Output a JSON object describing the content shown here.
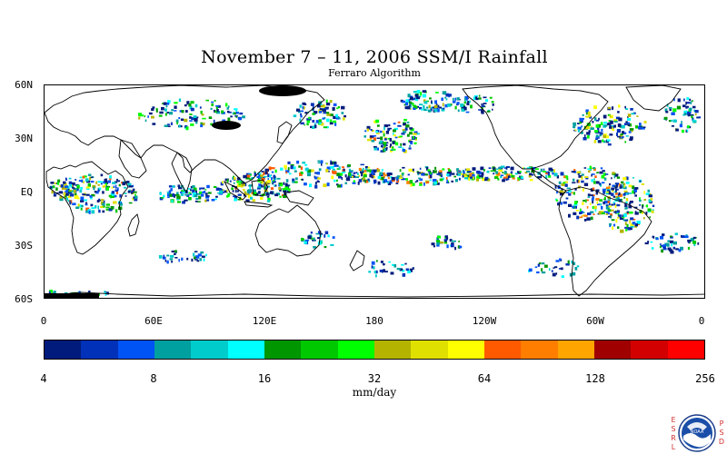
{
  "title": "November 7 – 11, 2006 SSM/I Rainfall",
  "subtitle": "Ferraro Algorithm",
  "map": {
    "lat_labels": [
      "60N",
      "30N",
      "EQ",
      "30S",
      "60S"
    ],
    "lon_labels": [
      "0",
      "60E",
      "120E",
      "180",
      "120W",
      "60W",
      "0"
    ]
  },
  "colorbar": {
    "colors": [
      "#001b7c",
      "#0031b8",
      "#0053f5",
      "#00a0a0",
      "#00cccc",
      "#00ffff",
      "#009600",
      "#00c800",
      "#00ff00",
      "#b4b400",
      "#e0e000",
      "#ffff00",
      "#ff5a00",
      "#ff7e00",
      "#ffa500",
      "#a00000",
      "#d20000",
      "#ff0000"
    ],
    "labels": [
      "4",
      "8",
      "16",
      "32",
      "64",
      "128",
      "256"
    ],
    "units": "mm/day"
  },
  "logo": {
    "left_text": [
      "E",
      "S",
      "R",
      "L"
    ],
    "right_text": [
      "P",
      "S",
      "D"
    ],
    "badge": "NOAA"
  }
}
